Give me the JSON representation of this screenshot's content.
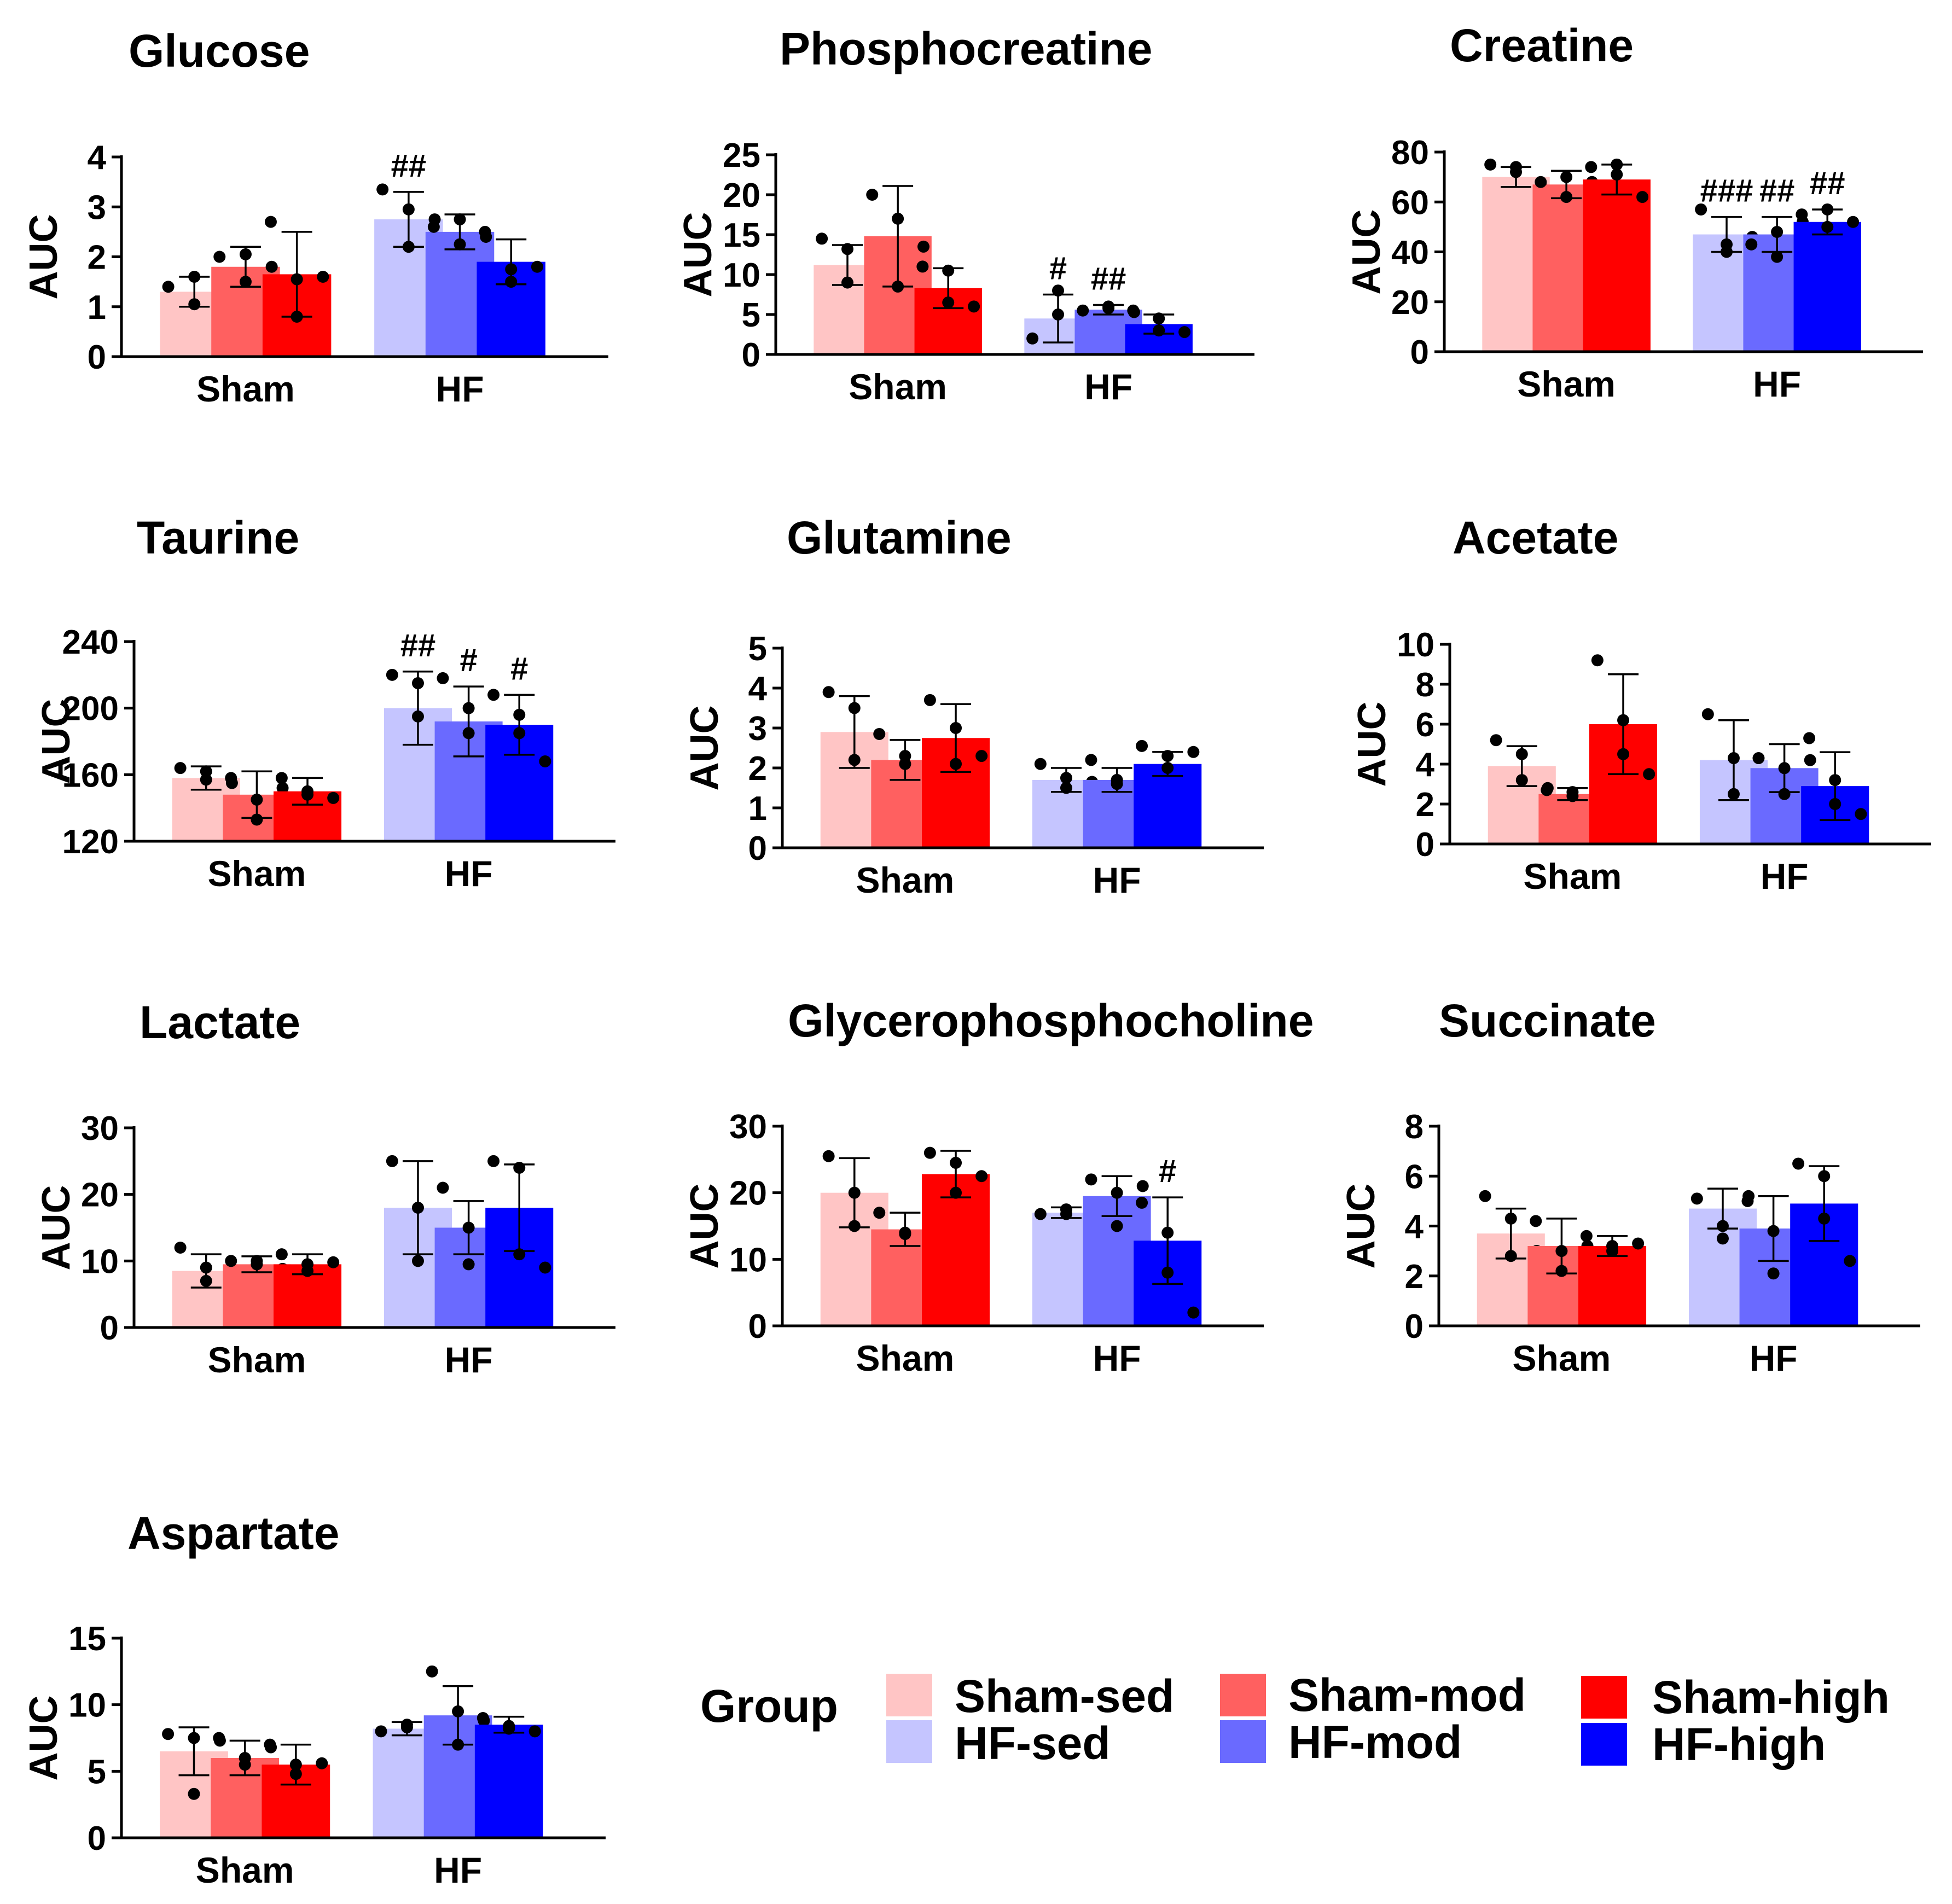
{
  "chart_data": [
    {
      "type": "bar",
      "title": "Glucose",
      "ylabel": "AUC",
      "categories": [
        "Sham",
        "HF"
      ],
      "ylim": [
        0,
        4
      ],
      "yticks": [
        0,
        1,
        2,
        3,
        4
      ],
      "series": [
        {
          "name": "Sham-sed",
          "values": [
            1.3,
            2.75
          ]
        },
        {
          "name": "Sham-mod",
          "values": [
            1.8,
            2.5
          ]
        },
        {
          "name": "Sham-high",
          "values": [
            1.65,
            1.9
          ]
        }
      ],
      "errors": [
        [
          0.3,
          0.55
        ],
        [
          0.4,
          0.35
        ],
        [
          0.85,
          0.45
        ]
      ],
      "points": [
        [
          [
            1.4,
            1.6,
            1.05,
            1.35
          ],
          [
            3.35,
            2.95,
            2.2,
            2.75
          ]
        ],
        [
          [
            2.0,
            2.05,
            1.5,
            1.8
          ],
          [
            2.6,
            2.25,
            2.75,
            2.4
          ]
        ],
        [
          [
            2.7,
            1.55,
            0.8,
            1.6
          ],
          [
            2.5,
            1.75,
            1.5,
            1.8
          ]
        ]
      ],
      "annotations": [
        {
          "category": "HF",
          "series": 0,
          "text": "##"
        }
      ]
    },
    {
      "type": "bar",
      "title": "Phosphocreatine",
      "ylabel": "AUC",
      "categories": [
        "Sham",
        "HF"
      ],
      "ylim": [
        0,
        25
      ],
      "yticks": [
        0,
        5,
        10,
        15,
        20,
        25
      ],
      "series": [
        {
          "name": "Sham-sed",
          "values": [
            11.2,
            4.5
          ]
        },
        {
          "name": "Sham-mod",
          "values": [
            14.8,
            5.6
          ]
        },
        {
          "name": "Sham-high",
          "values": [
            8.3,
            3.8
          ]
        }
      ],
      "errors": [
        [
          2.5,
          3.0
        ],
        [
          6.3,
          0.6
        ],
        [
          2.5,
          1.2
        ]
      ],
      "points": [
        [
          [
            14.5,
            13.2,
            9.0,
            8.5
          ],
          [
            2.0,
            8.0,
            5.0,
            3.5
          ]
        ],
        [
          [
            20.0,
            17.0,
            8.5,
            13.5
          ],
          [
            5.5,
            6.0,
            5.8,
            5.3
          ]
        ],
        [
          [
            11.0,
            10.5,
            6.5,
            6.0
          ],
          [
            5.5,
            4.5,
            3.0,
            2.8
          ]
        ]
      ],
      "annotations": [
        {
          "category": "HF",
          "series": 0,
          "text": "#"
        },
        {
          "category": "HF",
          "series": 1,
          "text": "##"
        }
      ]
    },
    {
      "type": "bar",
      "title": "Creatine",
      "ylabel": "AUC",
      "categories": [
        "Sham",
        "HF"
      ],
      "ylim": [
        0,
        80
      ],
      "yticks": [
        0,
        20,
        40,
        60,
        80
      ],
      "series": [
        {
          "name": "Sham-sed",
          "values": [
            70,
            47
          ]
        },
        {
          "name": "Sham-mod",
          "values": [
            67,
            47
          ]
        },
        {
          "name": "Sham-high",
          "values": [
            69,
            52
          ]
        }
      ],
      "errors": [
        [
          4,
          7
        ],
        [
          5.5,
          7
        ],
        [
          6,
          5
        ]
      ],
      "points": [
        [
          [
            75,
            74,
            72,
            66
          ],
          [
            57,
            43,
            40,
            46
          ]
        ],
        [
          [
            68,
            62,
            70,
            68
          ],
          [
            43,
            38,
            48,
            52
          ]
        ],
        [
          [
            74,
            75,
            71,
            62
          ],
          [
            55,
            50,
            57,
            52
          ]
        ]
      ],
      "annotations": [
        {
          "category": "HF",
          "series": 0,
          "text": "###"
        },
        {
          "category": "HF",
          "series": 1,
          "text": "##"
        },
        {
          "category": "HF",
          "series": 2,
          "text": "##"
        }
      ]
    },
    {
      "type": "bar",
      "title": "Taurine",
      "ylabel": "AUC",
      "categories": [
        "Sham",
        "HF"
      ],
      "ylim": [
        120,
        240
      ],
      "yticks": [
        120,
        160,
        200,
        240
      ],
      "series": [
        {
          "name": "Sham-sed",
          "values": [
            158,
            200
          ]
        },
        {
          "name": "Sham-mod",
          "values": [
            148,
            192
          ]
        },
        {
          "name": "Sham-high",
          "values": [
            150,
            190
          ]
        }
      ],
      "errors": [
        [
          7,
          22
        ],
        [
          14,
          21
        ],
        [
          8,
          18
        ]
      ],
      "points": [
        [
          [
            164,
            162,
            157,
            155
          ],
          [
            220,
            215,
            195,
            178
          ]
        ],
        [
          [
            158,
            145,
            133,
            152
          ],
          [
            218,
            200,
            185,
            175
          ]
        ],
        [
          [
            158,
            148,
            150,
            146
          ],
          [
            208,
            196,
            185,
            168
          ]
        ]
      ],
      "annotations": [
        {
          "category": "HF",
          "series": 0,
          "text": "##"
        },
        {
          "category": "HF",
          "series": 1,
          "text": "#"
        },
        {
          "category": "HF",
          "series": 2,
          "text": "#"
        }
      ]
    },
    {
      "type": "bar",
      "title": "Glutamine",
      "ylabel": "AUC",
      "categories": [
        "Sham",
        "HF"
      ],
      "ylim": [
        0,
        5
      ],
      "yticks": [
        0,
        1,
        2,
        3,
        4,
        5
      ],
      "series": [
        {
          "name": "Sham-sed",
          "values": [
            2.9,
            1.7
          ]
        },
        {
          "name": "Sham-mod",
          "values": [
            2.2,
            1.7
          ]
        },
        {
          "name": "Sham-high",
          "values": [
            2.75,
            2.1
          ]
        }
      ],
      "errors": [
        [
          0.9,
          0.3
        ],
        [
          0.5,
          0.3
        ],
        [
          0.85,
          0.3
        ]
      ],
      "points": [
        [
          [
            3.9,
            3.5,
            2.2,
            1.8
          ],
          [
            2.1,
            1.75,
            1.5,
            1.65
          ]
        ],
        [
          [
            2.85,
            2.3,
            2.1,
            2.2
          ],
          [
            2.2,
            1.6,
            1.7,
            1.8
          ]
        ],
        [
          [
            3.7,
            3.0,
            2.1,
            2.3
          ],
          [
            2.55,
            2.3,
            2.0,
            2.4
          ]
        ]
      ],
      "annotations": []
    },
    {
      "type": "bar",
      "title": "Acetate",
      "ylabel": "AUC",
      "categories": [
        "Sham",
        "HF"
      ],
      "ylim": [
        0,
        10
      ],
      "yticks": [
        0,
        2,
        4,
        6,
        8,
        10
      ],
      "series": [
        {
          "name": "Sham-sed",
          "values": [
            3.9,
            4.2
          ]
        },
        {
          "name": "Sham-mod",
          "values": [
            2.5,
            3.8
          ]
        },
        {
          "name": "Sham-high",
          "values": [
            6.0,
            2.9
          ]
        }
      ],
      "errors": [
        [
          1.0,
          2.0
        ],
        [
          0.3,
          1.2
        ],
        [
          2.5,
          1.7
        ]
      ],
      "points": [
        [
          [
            5.2,
            4.5,
            3.2,
            2.8
          ],
          [
            6.5,
            4.3,
            2.5,
            3.3
          ]
        ],
        [
          [
            2.7,
            2.4,
            2.6,
            2.5
          ],
          [
            4.3,
            2.5,
            3.8,
            4.2
          ]
        ],
        [
          [
            9.2,
            6.2,
            4.5,
            3.5
          ],
          [
            5.3,
            3.2,
            2.0,
            1.5
          ]
        ]
      ],
      "annotations": []
    },
    {
      "type": "bar",
      "title": "Lactate",
      "ylabel": "AUC",
      "categories": [
        "Sham",
        "HF"
      ],
      "ylim": [
        0,
        30
      ],
      "yticks": [
        0,
        10,
        20,
        30
      ],
      "series": [
        {
          "name": "Sham-sed",
          "values": [
            8.5,
            18
          ]
        },
        {
          "name": "Sham-mod",
          "values": [
            9.5,
            15
          ]
        },
        {
          "name": "Sham-high",
          "values": [
            9.5,
            18
          ]
        }
      ],
      "errors": [
        [
          2.5,
          7
        ],
        [
          1.2,
          4
        ],
        [
          1.5,
          6.5
        ]
      ],
      "points": [
        [
          [
            12,
            7,
            9,
            6
          ],
          [
            25,
            18,
            10,
            5
          ]
        ],
        [
          [
            10,
            9.5,
            10,
            8.8
          ],
          [
            21,
            15,
            9.5,
            14
          ]
        ],
        [
          [
            11,
            8.5,
            9.5,
            9.8
          ],
          [
            25,
            24,
            11,
            9
          ]
        ]
      ],
      "annotations": []
    },
    {
      "type": "bar",
      "title": "Glycerophosphocholine",
      "ylabel": "AUC",
      "categories": [
        "Sham",
        "HF"
      ],
      "ylim": [
        0,
        30
      ],
      "yticks": [
        0,
        10,
        20,
        30
      ],
      "series": [
        {
          "name": "Sham-sed",
          "values": [
            20,
            17
          ]
        },
        {
          "name": "Sham-mod",
          "values": [
            14.5,
            19.5
          ]
        },
        {
          "name": "Sham-high",
          "values": [
            22.8,
            12.8
          ]
        }
      ],
      "errors": [
        [
          5.2,
          0.8
        ],
        [
          2.5,
          3
        ],
        [
          3.5,
          6.5
        ]
      ],
      "points": [
        [
          [
            25.5,
            20,
            15,
            13.5
          ],
          [
            16.8,
            17.5,
            16.8,
            18
          ]
        ],
        [
          [
            17,
            14,
            13.8,
            14.5
          ],
          [
            22,
            20,
            15,
            21
          ]
        ],
        [
          [
            26,
            24.5,
            20,
            22.5
          ],
          [
            18.5,
            14,
            8,
            2
          ]
        ]
      ],
      "annotations": [
        {
          "category": "HF",
          "series": 2,
          "text": "#"
        }
      ]
    },
    {
      "type": "bar",
      "title": "Succinate",
      "ylabel": "AUC",
      "categories": [
        "Sham",
        "HF"
      ],
      "ylim": [
        0,
        8
      ],
      "yticks": [
        0,
        2,
        4,
        6,
        8
      ],
      "series": [
        {
          "name": "Sham-sed",
          "values": [
            3.7,
            4.7
          ]
        },
        {
          "name": "Sham-mod",
          "values": [
            3.2,
            3.9
          ]
        },
        {
          "name": "Sham-high",
          "values": [
            3.2,
            4.9
          ]
        }
      ],
      "errors": [
        [
          1.0,
          0.8
        ],
        [
          1.1,
          1.3
        ],
        [
          0.4,
          1.5
        ]
      ],
      "points": [
        [
          [
            5.2,
            4.3,
            2.8,
            3.0
          ],
          [
            5.1,
            4.0,
            3.5,
            5.2
          ]
        ],
        [
          [
            4.2,
            3.0,
            2.2,
            3.2
          ],
          [
            5.0,
            3.8,
            2.1,
            4.5
          ]
        ],
        [
          [
            3.6,
            3.2,
            3.0,
            3.3
          ],
          [
            6.5,
            6.0,
            4.3,
            2.6
          ]
        ]
      ],
      "annotations": []
    },
    {
      "type": "bar",
      "title": "Aspartate",
      "ylabel": "AUC",
      "categories": [
        "Sham",
        "HF"
      ],
      "ylim": [
        0,
        15
      ],
      "yticks": [
        0,
        5,
        10,
        15
      ],
      "series": [
        {
          "name": "Sham-sed",
          "values": [
            6.5,
            8.2
          ]
        },
        {
          "name": "Sham-mod",
          "values": [
            6.0,
            9.2
          ]
        },
        {
          "name": "Sham-high",
          "values": [
            5.5,
            8.5
          ]
        }
      ],
      "errors": [
        [
          1.8,
          0.5
        ],
        [
          1.3,
          2.2
        ],
        [
          1.5,
          0.6
        ]
      ],
      "points": [
        [
          [
            7.8,
            7.5,
            3.3,
            7.3
          ],
          [
            8.0,
            8.3,
            8.5,
            7.8
          ]
        ],
        [
          [
            7.5,
            5.5,
            6.0,
            6.8
          ],
          [
            12.5,
            9.5,
            7.0,
            8.8
          ]
        ],
        [
          [
            7.0,
            5.5,
            4.8,
            5.6
          ],
          [
            9.0,
            8.2,
            8.4,
            8.0
          ]
        ]
      ],
      "annotations": []
    }
  ],
  "legend": {
    "title": "Group",
    "items": [
      {
        "label": "Sham-sed",
        "color": "#FFC5C5"
      },
      {
        "label": "Sham-mod",
        "color": "#FF6060"
      },
      {
        "label": "Sham-high",
        "color": "#FF0000"
      },
      {
        "label": "HF-sed",
        "color": "#C5C5FF"
      },
      {
        "label": "HF-mod",
        "color": "#6A6AFF"
      },
      {
        "label": "HF-high",
        "color": "#0000FF"
      }
    ]
  },
  "colors": {
    "Sham": [
      "#FFC5C5",
      "#FF6060",
      "#FF0000"
    ],
    "HF": [
      "#C5C5FF",
      "#6A6AFF",
      "#0000FF"
    ]
  }
}
